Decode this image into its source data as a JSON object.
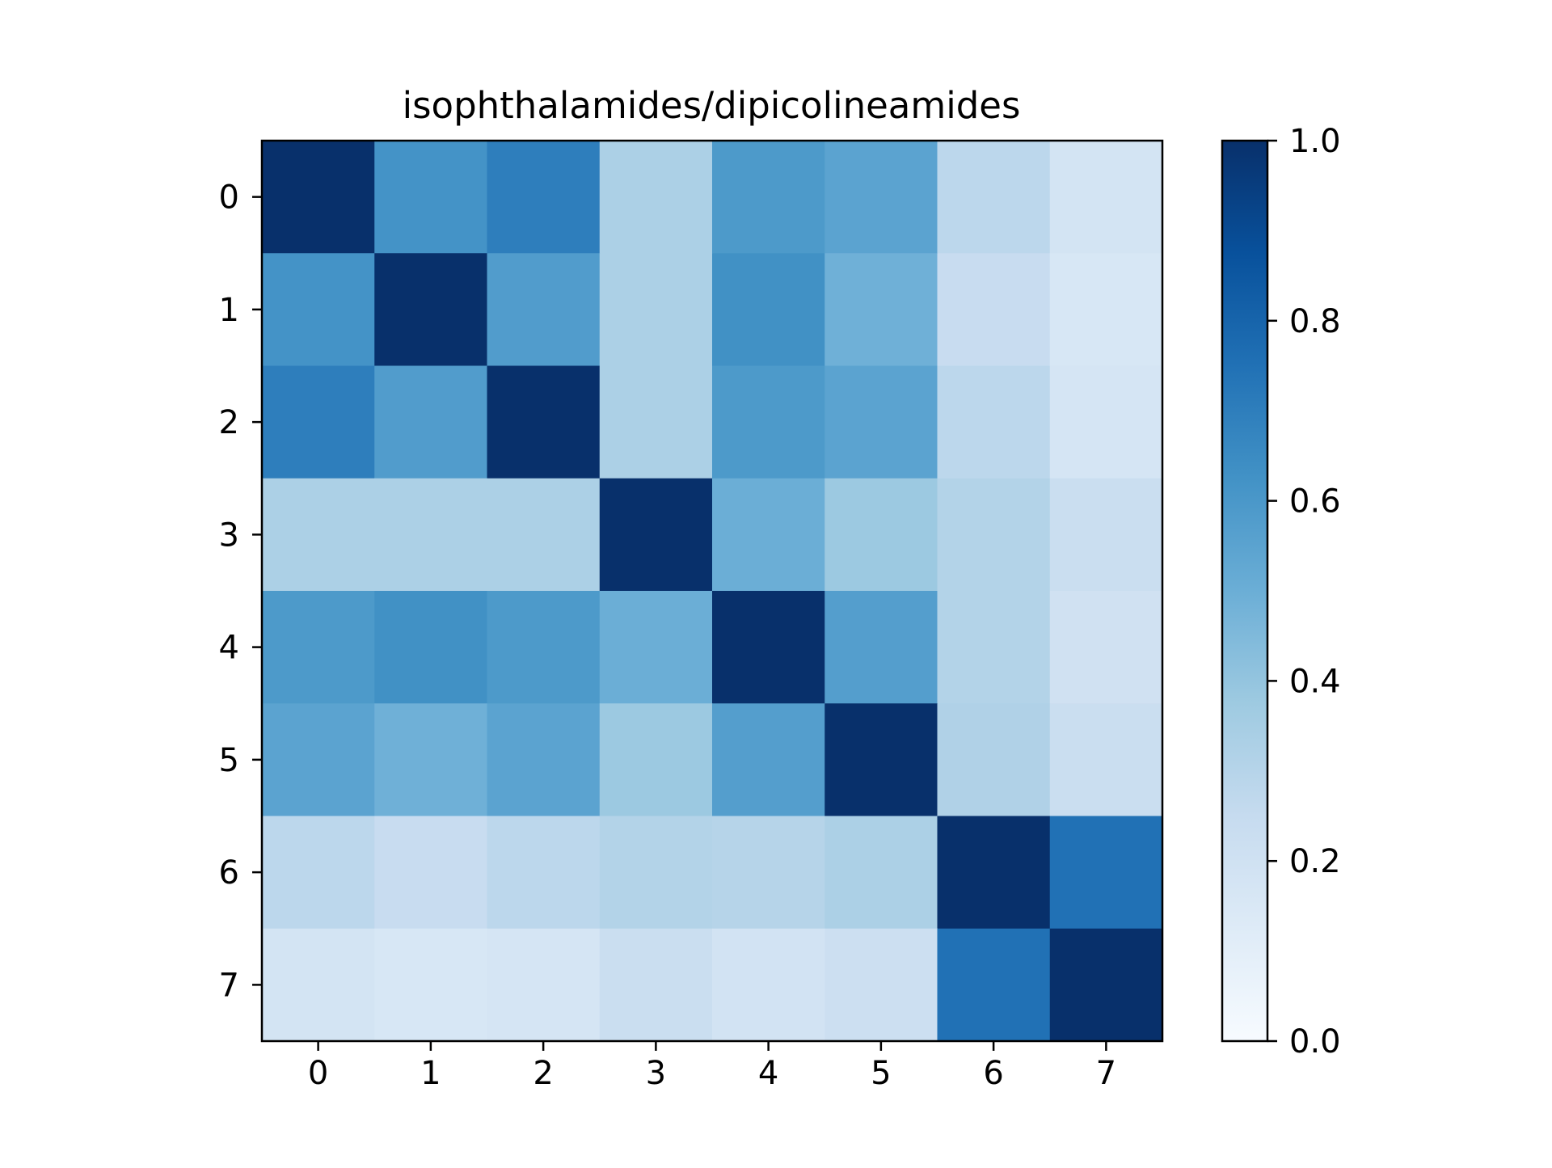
{
  "chart_data": {
    "type": "heatmap",
    "title": "isophthalamides/dipicolineamides",
    "xlabel": "",
    "ylabel": "",
    "x_ticks": [
      "0",
      "1",
      "2",
      "3",
      "4",
      "5",
      "6",
      "7"
    ],
    "y_ticks": [
      "0",
      "1",
      "2",
      "3",
      "4",
      "5",
      "6",
      "7"
    ],
    "values": [
      [
        1.0,
        0.62,
        0.7,
        0.33,
        0.59,
        0.55,
        0.28,
        0.18
      ],
      [
        0.62,
        1.0,
        0.58,
        0.33,
        0.63,
        0.49,
        0.24,
        0.16
      ],
      [
        0.7,
        0.58,
        1.0,
        0.33,
        0.59,
        0.55,
        0.28,
        0.17
      ],
      [
        0.33,
        0.33,
        0.33,
        1.0,
        0.5,
        0.38,
        0.31,
        0.23
      ],
      [
        0.59,
        0.63,
        0.59,
        0.5,
        1.0,
        0.57,
        0.31,
        0.2
      ],
      [
        0.55,
        0.49,
        0.55,
        0.38,
        0.57,
        1.0,
        0.32,
        0.23
      ],
      [
        0.28,
        0.24,
        0.28,
        0.31,
        0.3,
        0.33,
        1.0,
        0.75
      ],
      [
        0.18,
        0.16,
        0.17,
        0.23,
        0.19,
        0.22,
        0.75,
        1.0
      ]
    ],
    "colormap": "Blues",
    "colormap_stops": [
      "#f7fbff",
      "#deebf7",
      "#c6dbef",
      "#9ecae1",
      "#6baed6",
      "#4292c6",
      "#2171b5",
      "#08519c",
      "#08306b"
    ],
    "colorbar": {
      "range": [
        0.0,
        1.0
      ],
      "ticks": [
        "0.0",
        "0.2",
        "0.4",
        "0.6",
        "0.8",
        "1.0"
      ]
    },
    "grid": false
  }
}
